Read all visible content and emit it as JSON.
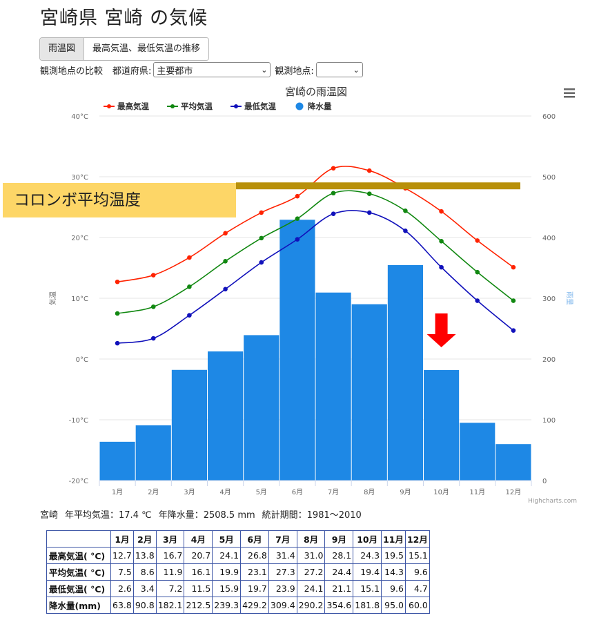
{
  "page": {
    "title": "宮崎県 宮崎 の気候"
  },
  "tabs": [
    {
      "label": "雨温図",
      "active": true
    },
    {
      "label": "最高気温、最低気温の推移",
      "active": false
    }
  ],
  "compare": {
    "label": "観測地点の比較",
    "prefecture_label": "都道府県:",
    "prefecture_value": "主要都市",
    "station_label": "観測地点:",
    "station_value": ""
  },
  "overlay": {
    "label": "コロンボ平均温度",
    "colors": {
      "box": "#fdd667",
      "line": "#b8900a",
      "arrow": "#ff0000"
    }
  },
  "summary": {
    "station": "宮崎",
    "avg_temp": "年平均気温：17.4 ℃",
    "precip": "年降水量：2508.5 mm",
    "period": "統計期間：1981～2010"
  },
  "credit": "Highcharts.com",
  "chart_data": {
    "type": "combo",
    "title": "宮崎の雨温図",
    "categories": [
      "1月",
      "2月",
      "3月",
      "4月",
      "5月",
      "6月",
      "7月",
      "8月",
      "9月",
      "10月",
      "11月",
      "12月"
    ],
    "y_left": {
      "label": "気温",
      "min": -20,
      "max": 40,
      "step": 10,
      "unit": "°C"
    },
    "y_right": {
      "label": "雨量",
      "min": 0,
      "max": 600,
      "step": 100
    },
    "legend_position": "top-left",
    "grid": true,
    "series": [
      {
        "name": "最高気温",
        "type": "line",
        "axis": "left",
        "color": "#ff2200",
        "values": [
          12.7,
          13.8,
          16.7,
          20.7,
          24.1,
          26.8,
          31.4,
          31.0,
          28.1,
          24.3,
          19.5,
          15.1
        ]
      },
      {
        "name": "平均気温",
        "type": "line",
        "axis": "left",
        "color": "#118811",
        "values": [
          7.5,
          8.6,
          11.9,
          16.1,
          19.9,
          23.1,
          27.3,
          27.2,
          24.4,
          19.4,
          14.3,
          9.6
        ]
      },
      {
        "name": "最低気温",
        "type": "line",
        "axis": "left",
        "color": "#1111bb",
        "values": [
          2.6,
          3.4,
          7.2,
          11.5,
          15.9,
          19.7,
          23.9,
          24.1,
          21.1,
          15.1,
          9.6,
          4.7
        ]
      },
      {
        "name": "降水量",
        "type": "bar",
        "axis": "right",
        "color": "#1e88e5",
        "values": [
          63.8,
          90.8,
          182.1,
          212.5,
          239.3,
          429.2,
          309.4,
          290.2,
          354.6,
          181.8,
          95.0,
          60.0
        ]
      }
    ],
    "annotations": [
      {
        "type": "horizontal-line",
        "axis": "left",
        "value": 28.5,
        "color": "#b8900a"
      },
      {
        "type": "arrow-down",
        "category": "10月",
        "color": "#ff0000"
      }
    ]
  },
  "table": {
    "months": [
      "1月",
      "2月",
      "3月",
      "4月",
      "5月",
      "6月",
      "7月",
      "8月",
      "9月",
      "10月",
      "11月",
      "12月"
    ],
    "rows": [
      {
        "label": "最高気温( °C)",
        "values": [
          "12.7",
          "13.8",
          "16.7",
          "20.7",
          "24.1",
          "26.8",
          "31.4",
          "31.0",
          "28.1",
          "24.3",
          "19.5",
          "15.1"
        ]
      },
      {
        "label": "平均気温( °C)",
        "values": [
          "7.5",
          "8.6",
          "11.9",
          "16.1",
          "19.9",
          "23.1",
          "27.3",
          "27.2",
          "24.4",
          "19.4",
          "14.3",
          "9.6"
        ]
      },
      {
        "label": "最低気温( °C)",
        "values": [
          "2.6",
          "3.4",
          "7.2",
          "11.5",
          "15.9",
          "19.7",
          "23.9",
          "24.1",
          "21.1",
          "15.1",
          "9.6",
          "4.7"
        ]
      },
      {
        "label": "降水量(mm)",
        "values": [
          "63.8",
          "90.8",
          "182.1",
          "212.5",
          "239.3",
          "429.2",
          "309.4",
          "290.2",
          "354.6",
          "181.8",
          "95.0",
          "60.0"
        ]
      }
    ]
  }
}
